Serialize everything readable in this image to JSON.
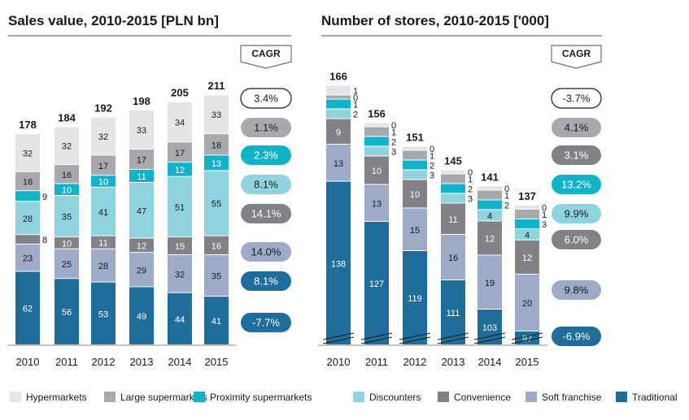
{
  "colors": {
    "Hypermarkets": "#e4e5e7",
    "Large supermarkets": "#a7a9ac",
    "Proximity supermarkets": "#12b2c9",
    "Discounters": "#8fd3df",
    "Convenience": "#808285",
    "Soft franchise": "#9dabc9",
    "Traditional": "#1f6d9b"
  },
  "legend": [
    {
      "label": "Hypermarkets",
      "color": "#e4e5e7"
    },
    {
      "label": "Large supermarkets",
      "color": "#a7a9ac"
    },
    {
      "label": "Proximity supermarkets",
      "color": "#12b2c9"
    },
    {
      "label": "Discounters",
      "color": "#8fd3df"
    },
    {
      "label": "Convenience",
      "color": "#808285"
    },
    {
      "label": "Soft franchise",
      "color": "#9dabc9"
    },
    {
      "label": "Traditional",
      "color": "#1f6d9b"
    }
  ],
  "chart_data": [
    {
      "type": "bar",
      "stacked": true,
      "title": "Sales value, 2010-2015 [PLN bn]",
      "categories": [
        "2010",
        "2011",
        "2012",
        "2013",
        "2014",
        "2015"
      ],
      "totals": [
        178,
        184,
        192,
        198,
        205,
        211
      ],
      "series": [
        {
          "name": "Traditional",
          "values": [
            62,
            56,
            53,
            49,
            44,
            41
          ]
        },
        {
          "name": "Soft franchise",
          "values": [
            23,
            25,
            28,
            29,
            32,
            35
          ]
        },
        {
          "name": "Convenience",
          "values": [
            8,
            10,
            11,
            12,
            15,
            16
          ]
        },
        {
          "name": "Discounters",
          "values": [
            28,
            35,
            41,
            47,
            51,
            55
          ]
        },
        {
          "name": "Proximity supermarkets",
          "values": [
            9,
            10,
            10,
            11,
            12,
            13
          ]
        },
        {
          "name": "Large supermarkets",
          "values": [
            16,
            16,
            17,
            17,
            17,
            18
          ]
        },
        {
          "name": "Hypermarkets",
          "values": [
            32,
            32,
            32,
            33,
            34,
            33
          ]
        }
      ],
      "cagr_header": "CAGR",
      "cagr": [
        {
          "series": "Hypermarkets",
          "text": "3.4%",
          "style": "outline"
        },
        {
          "series": "Large supermarkets",
          "text": "1.1%",
          "style": "fill"
        },
        {
          "series": "Proximity supermarkets",
          "text": "2.3%",
          "style": "fill"
        },
        {
          "series": "Discounters",
          "text": "8.1%",
          "style": "fill"
        },
        {
          "series": "Convenience",
          "text": "14.1%",
          "style": "fill"
        },
        {
          "series": "Soft franchise",
          "text": "14.0%",
          "style": "fill"
        },
        {
          "series": "Traditional",
          "text": "8.1%",
          "style": "fill"
        },
        {
          "series": "Traditional",
          "text": "-7.7%",
          "style": "fill"
        }
      ]
    },
    {
      "type": "bar",
      "stacked": true,
      "axis_break": true,
      "title": "Number of stores, 2010-2015 ['000]",
      "categories": [
        "2010",
        "2011",
        "2012",
        "2013",
        "2014",
        "2015"
      ],
      "totals": [
        166,
        156,
        151,
        145,
        141,
        137
      ],
      "series": [
        {
          "name": "Traditional",
          "values": [
            138,
            127,
            119,
            111,
            103,
            97
          ]
        },
        {
          "name": "Soft franchise",
          "values": [
            13,
            13,
            15,
            16,
            19,
            20
          ]
        },
        {
          "name": "Convenience",
          "values": [
            9,
            10,
            10,
            11,
            12,
            12
          ]
        },
        {
          "name": "Discounters",
          "values": [
            2,
            3,
            3,
            3,
            4,
            4
          ]
        },
        {
          "name": "Proximity supermarkets",
          "values": [
            1,
            2,
            2,
            2,
            2,
            3
          ]
        },
        {
          "name": "Large supermarkets",
          "values": [
            0,
            1,
            1,
            1,
            1,
            1
          ]
        },
        {
          "name": "Hypermarkets",
          "values": [
            1,
            0,
            0,
            0,
            0,
            0
          ]
        }
      ],
      "cagr_header": "CAGR",
      "cagr": [
        {
          "series": "Hypermarkets",
          "text": "-3.7%",
          "style": "outline"
        },
        {
          "series": "Large supermarkets",
          "text": "4.1%",
          "style": "fill"
        },
        {
          "series": "Convenience",
          "text": "3.1%",
          "style": "fill"
        },
        {
          "series": "Proximity supermarkets",
          "text": "13.2%",
          "style": "fill"
        },
        {
          "series": "Discounters",
          "text": "9.9%",
          "style": "fill"
        },
        {
          "series": "Convenience",
          "text": "6.0%",
          "style": "fill"
        },
        {
          "series": "Soft franchise",
          "text": "9.8%",
          "style": "fill"
        },
        {
          "series": "Traditional",
          "text": "-6.9%",
          "style": "fill"
        }
      ]
    }
  ]
}
